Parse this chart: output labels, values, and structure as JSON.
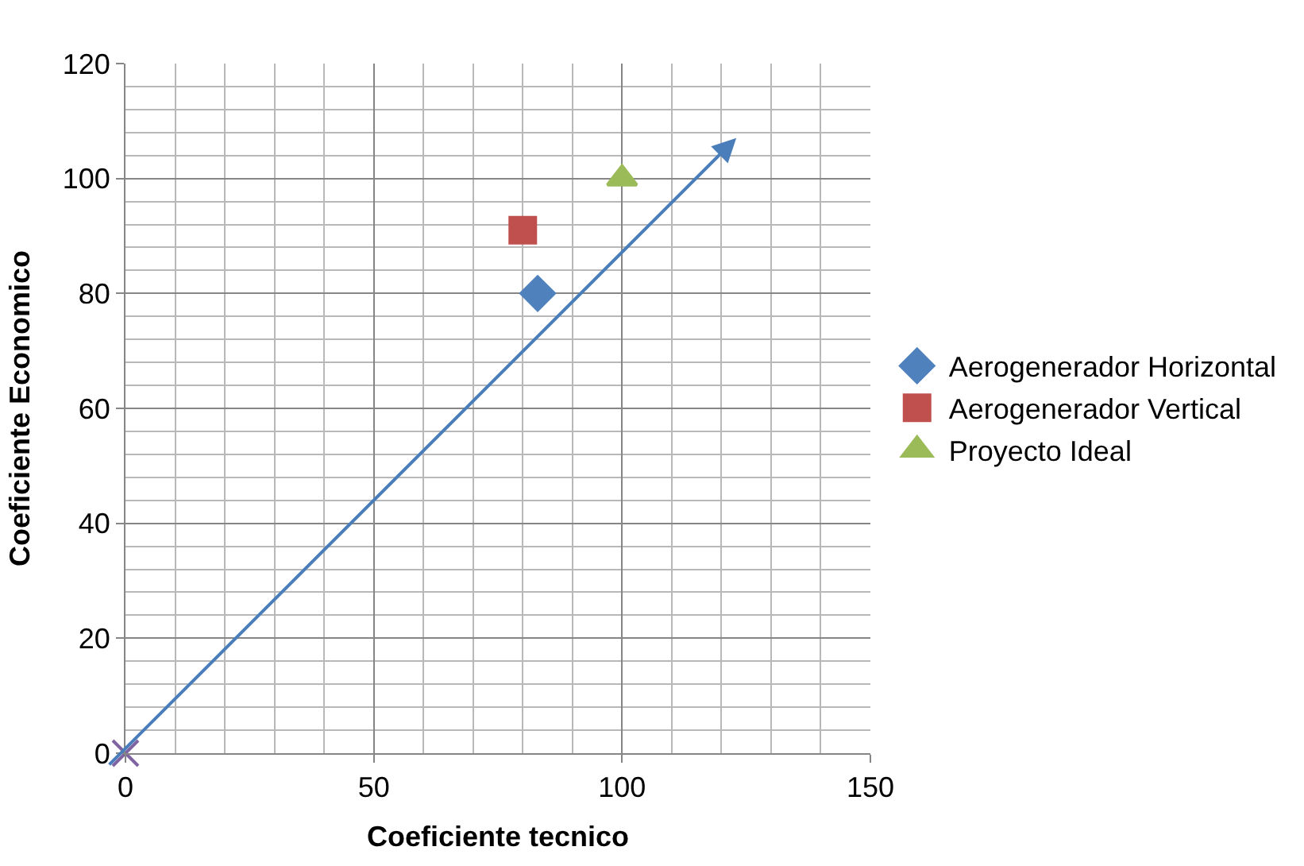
{
  "chart_data": {
    "type": "scatter",
    "xlabel": "Coeficiente tecnico",
    "ylabel": "Coeficiente Economico",
    "xlim": [
      0,
      150
    ],
    "xticks": [
      0,
      50,
      100,
      150
    ],
    "ylim": [
      0,
      120
    ],
    "yticks": [
      0,
      20,
      40,
      60,
      80,
      100,
      120
    ],
    "grid": true,
    "legend": "right",
    "series": [
      {
        "name": "Aerogenerador Horizontal",
        "color": "#4f81bd",
        "marker": "diamond",
        "x": [
          83
        ],
        "values": [
          80
        ]
      },
      {
        "name": "Aerogenerador Vertical",
        "color": "#c0504d",
        "marker": "square",
        "x": [
          80
        ],
        "values": [
          91
        ]
      },
      {
        "name": "Proyecto Ideal",
        "color": "#9bbb59",
        "marker": "triangle",
        "x": [
          100
        ],
        "values": [
          100
        ]
      },
      {
        "color": "#8064a2",
        "marker": "cross",
        "x": [
          0
        ],
        "values": [
          0
        ]
      }
    ]
  }
}
